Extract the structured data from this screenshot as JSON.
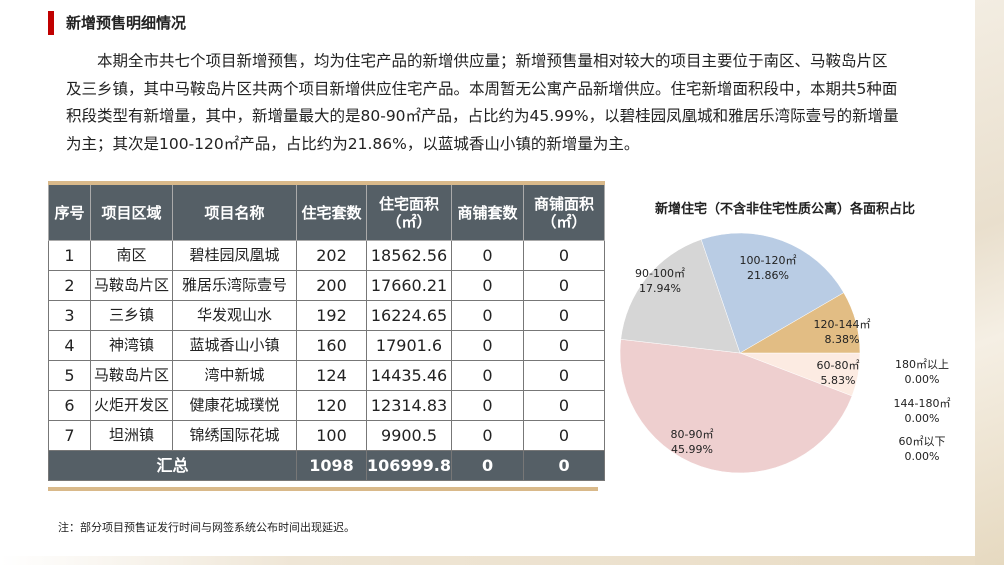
{
  "title": "新增预售明细情况",
  "paragraph_lines": [
    "本期全市共七个项目新增预售，均为住宅产品的新增供应量；新增预售量相对较大的项目主要位于南区、马鞍岛片区",
    "及三乡镇，其中马鞍岛片区共两个项目新增供应住宅产品。本周暂无公寓产品新增供应。住宅新增面积段中，本期共5种面",
    "积段类型有新增量，其中，新增量最大的是80-90㎡产品，占比约为45.99%，以碧桂园凤凰城和雅居乐湾际壹号的新增量",
    "为主；其次是100-120㎡产品，占比约为21.86%，以蓝城香山小镇的新增量为主。"
  ],
  "table": {
    "headers": [
      "序号",
      "项目区域",
      "项目名称",
      "住宅套数",
      "住宅面积\n（㎡）",
      "商铺套数",
      "商铺面积\n（㎡）"
    ],
    "rows": [
      [
        "1",
        "南区",
        "碧桂园凤凰城",
        "202",
        "18562.56",
        "0",
        "0"
      ],
      [
        "2",
        "马鞍岛片区",
        "雅居乐湾际壹号",
        "200",
        "17660.21",
        "0",
        "0"
      ],
      [
        "3",
        "三乡镇",
        "华发观山水",
        "192",
        "16224.65",
        "0",
        "0"
      ],
      [
        "4",
        "神湾镇",
        "蓝城香山小镇",
        "160",
        "17901.6",
        "0",
        "0"
      ],
      [
        "5",
        "马鞍岛片区",
        "湾中新城",
        "124",
        "14435.46",
        "0",
        "0"
      ],
      [
        "6",
        "火炬开发区",
        "健康花城璞悦",
        "120",
        "12314.83",
        "0",
        "0"
      ],
      [
        "7",
        "坦洲镇",
        "锦绣国际花城",
        "100",
        "9900.5",
        "0",
        "0"
      ]
    ],
    "summary": {
      "label": "汇总",
      "units": "1098",
      "area": "106999.8",
      "shop_units": "0",
      "shop_area": "0"
    }
  },
  "note": "注：部分项目预售证发行时间与网签系统公布时间出现延迟。",
  "chart_data": {
    "type": "pie",
    "title": "新增住宅（不含非住宅性质公寓）各面积占比",
    "slices": [
      {
        "label": "60-80㎡",
        "value": 5.83,
        "pct": "5.83%",
        "color": "#fcebe2"
      },
      {
        "label": "80-90㎡",
        "value": 45.99,
        "pct": "45.99%",
        "color": "#eecfcf"
      },
      {
        "label": "90-100㎡",
        "value": 17.94,
        "pct": "17.94%",
        "color": "#d6d6d6"
      },
      {
        "label": "100-120㎡",
        "value": 21.86,
        "pct": "21.86%",
        "color": "#b9cce4"
      },
      {
        "label": "120-144㎡",
        "value": 8.38,
        "pct": "8.38%",
        "color": "#e2bd84"
      },
      {
        "label": "180㎡以上",
        "value": 0,
        "pct": "0.00%",
        "color": "#cccccc"
      },
      {
        "label": "144-180㎡",
        "value": 0,
        "pct": "0.00%",
        "color": "#cccccc"
      },
      {
        "label": "60㎡以下",
        "value": 0,
        "pct": "0.00%",
        "color": "#cccccc"
      }
    ]
  }
}
